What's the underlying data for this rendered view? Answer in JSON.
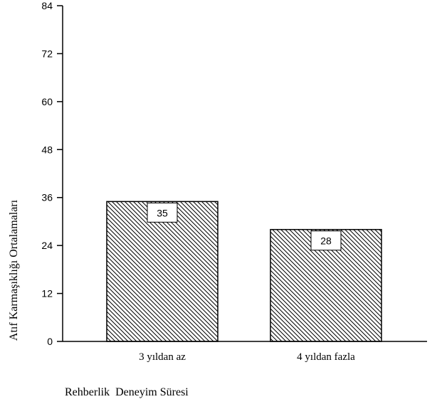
{
  "chart_data": {
    "type": "bar",
    "categories": [
      "3 yıldan az",
      "4 yıldan fazla"
    ],
    "values": [
      35,
      28
    ],
    "data_labels": [
      "35",
      "28"
    ],
    "xlabel": "Rehberlik  Deneyim Süresi",
    "ylabel": "Atıf Karmaşıklığı Ortalamaları",
    "ylim": [
      0,
      84
    ],
    "yticks": [
      "0",
      "12",
      "24",
      "36",
      "48",
      "60",
      "72",
      "84"
    ],
    "bar_fill": "diagonal-hatch",
    "bar_color": "#000000",
    "grid": false,
    "legend": "none"
  }
}
